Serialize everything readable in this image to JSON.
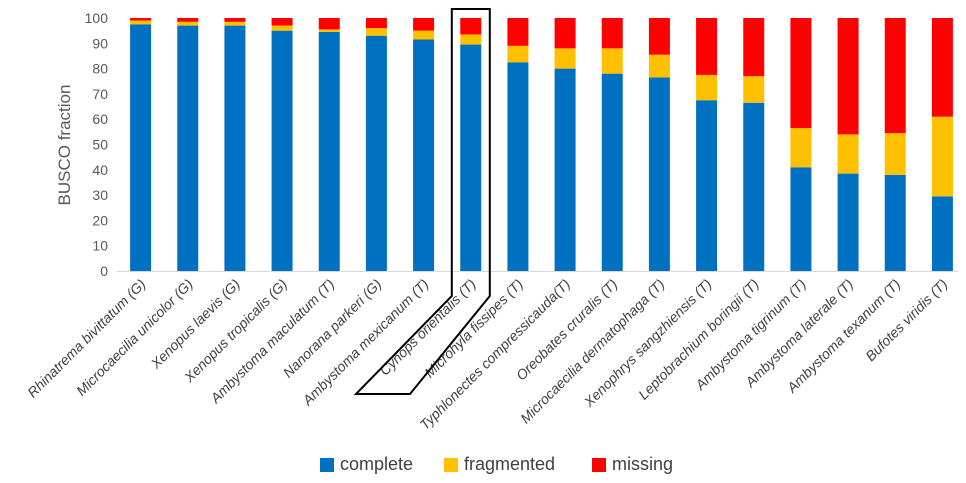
{
  "chart_data": {
    "type": "bar",
    "stacked": true,
    "ylabel": "BUSCO fraction",
    "xlabel": "",
    "ylim": [
      0,
      100
    ],
    "yticks": [
      0,
      10,
      20,
      30,
      40,
      50,
      60,
      70,
      80,
      90,
      100
    ],
    "grid": false,
    "legend_position": "bottom",
    "categories": [
      "Rhinatrema bivittatum (G)",
      "Microcaecilia unicolor (G)",
      "Xenopus laevis (G)",
      "Xenopus tropicalis (G)",
      "Ambystoma maculatum (T)",
      "Nanorana parkeri (G)",
      "Ambystoma mexicanum (T)",
      "Cynops orientalis (T)",
      "Microhyla fissipes (T)",
      "Typhlonectes compressicauda(T)",
      "Oreobates cruralis (T)",
      "Microcaecilia dermatophaga (T)",
      "Xenophrys sangzhiensis (T)",
      "Leptobrachium boringii (T)",
      "Ambystoma tigrinum (T)",
      "Ambystoma laterale (T)",
      "Ambystoma texanum (T)",
      "Bufotes viridis (T)"
    ],
    "series": [
      {
        "name": "complete",
        "color": "#0070C0",
        "values": [
          97.5,
          97,
          97,
          95,
          94.5,
          93,
          91.5,
          89.5,
          82.5,
          80,
          78,
          76.5,
          67.5,
          66.5,
          41,
          38.5,
          38,
          29.5
        ]
      },
      {
        "name": "fragmented",
        "color": "#FFC000",
        "values": [
          1.5,
          1.5,
          1.5,
          2,
          1,
          3,
          3.5,
          4,
          6.5,
          8,
          10,
          9,
          10,
          10.5,
          15.5,
          15.5,
          16.5,
          31.5
        ]
      },
      {
        "name": "missing",
        "color": "#FF0000",
        "values": [
          1,
          1.5,
          1.5,
          3,
          4.5,
          4,
          5,
          6.5,
          11,
          12,
          12,
          14.5,
          22.5,
          23,
          43.5,
          46,
          45.5,
          39
        ]
      }
    ],
    "highlighted_category": "Cynops orientalis (T)"
  }
}
